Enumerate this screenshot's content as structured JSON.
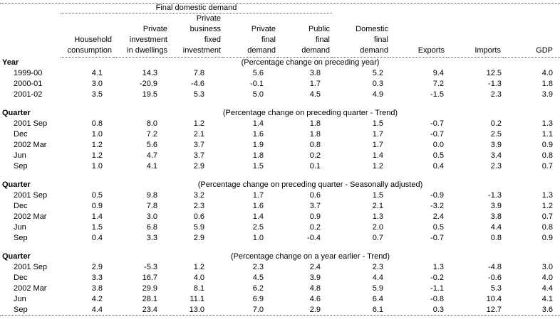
{
  "table": {
    "spanner": "Final domestic demand",
    "columns": [
      {
        "lines": [
          "Household",
          "consumption"
        ]
      },
      {
        "lines": [
          "Private",
          "investment",
          "in dwellings"
        ]
      },
      {
        "lines": [
          "Private",
          "business",
          "fixed",
          "investment"
        ]
      },
      {
        "lines": [
          "Private",
          "final",
          "demand"
        ]
      },
      {
        "lines": [
          "Public",
          "final",
          "demand"
        ]
      },
      {
        "lines": [
          "Domestic",
          "final",
          "demand"
        ]
      },
      {
        "lines": [
          "Exports"
        ]
      },
      {
        "lines": [
          "Imports"
        ]
      },
      {
        "lines": [
          "GDP"
        ]
      }
    ],
    "sections": [
      {
        "label": "Year",
        "caption": "(Percentage change on preceding year)",
        "rows": [
          {
            "period": "1999-00",
            "values": [
              "4.1",
              "14.3",
              "7.8",
              "5.6",
              "3.8",
              "5.2",
              "9.4",
              "12.5",
              "4.0"
            ]
          },
          {
            "period": "2000-01",
            "values": [
              "3.0",
              "-20.9",
              "-4.6",
              "-0.1",
              "1.7",
              "0.3",
              "7.2",
              "-1.3",
              "1.8"
            ]
          },
          {
            "period": "2001-02",
            "values": [
              "3.5",
              "19.5",
              "5.3",
              "5.0",
              "4.5",
              "4.9",
              "-1.5",
              "2.3",
              "3.9"
            ]
          }
        ]
      },
      {
        "label": "Quarter",
        "caption": "(Percentage change on preceding quarter - Trend)",
        "rows": [
          {
            "period": "2001 Sep",
            "values": [
              "0.8",
              "8.0",
              "1.2",
              "1.4",
              "1.8",
              "1.5",
              "-0.7",
              "0.2",
              "1.3"
            ]
          },
          {
            "period": "Dec",
            "values": [
              "1.0",
              "7.2",
              "2.1",
              "1.6",
              "1.8",
              "1.7",
              "-0.7",
              "2.5",
              "1.1"
            ]
          },
          {
            "period": "2002 Mar",
            "values": [
              "1.2",
              "5.6",
              "3.7",
              "1.9",
              "0.8",
              "1.7",
              "0.0",
              "3.9",
              "0.9"
            ]
          },
          {
            "period": "Jun",
            "values": [
              "1.2",
              "4.7",
              "3.7",
              "1.8",
              "0.2",
              "1.4",
              "0.5",
              "3.4",
              "0.8"
            ]
          },
          {
            "period": "Sep",
            "values": [
              "1.0",
              "4.1",
              "2.9",
              "1.5",
              "0.1",
              "1.2",
              "0.4",
              "2.3",
              "0.7"
            ]
          }
        ]
      },
      {
        "label": "Quarter",
        "caption": "(Percentage change on preceding quarter - Seasonally adjusted)",
        "rows": [
          {
            "period": "2001 Sep",
            "values": [
              "0.5",
              "9.8",
              "3.2",
              "1.7",
              "0.6",
              "1.5",
              "-0.9",
              "-1.3",
              "1.3"
            ]
          },
          {
            "period": "Dec",
            "values": [
              "0.9",
              "7.8",
              "2.3",
              "1.6",
              "3.7",
              "2.1",
              "-3.2",
              "3.9",
              "1.2"
            ]
          },
          {
            "period": "2002 Mar",
            "values": [
              "1.4",
              "3.0",
              "0.6",
              "1.4",
              "0.9",
              "1.3",
              "2.4",
              "3.8",
              "0.7"
            ]
          },
          {
            "period": "Jun",
            "values": [
              "1.5",
              "6.8",
              "5.9",
              "2.5",
              "0.2",
              "2.0",
              "0.5",
              "4.4",
              "0.8"
            ]
          },
          {
            "period": "Sep",
            "values": [
              "0.4",
              "3.3",
              "2.9",
              "1.0",
              "-0.4",
              "0.7",
              "-0.7",
              "0.8",
              "0.9"
            ]
          }
        ]
      },
      {
        "label": "Quarter",
        "caption": "(Percentage change on a year earlier - Trend)",
        "rows": [
          {
            "period": "2001 Sep",
            "values": [
              "2.9",
              "-5.3",
              "1.2",
              "2.3",
              "2.4",
              "2.3",
              "1.3",
              "-4.8",
              "3.0"
            ]
          },
          {
            "period": "Dec",
            "values": [
              "3.3",
              "16.7",
              "4.0",
              "4.5",
              "3.9",
              "4.4",
              "-0.2",
              "-0.6",
              "4.0"
            ]
          },
          {
            "period": "2002 Mar",
            "values": [
              "3.8",
              "29.9",
              "8.1",
              "6.2",
              "4.8",
              "5.9",
              "-1.1",
              "5.3",
              "4.4"
            ]
          },
          {
            "period": "Jun",
            "values": [
              "4.2",
              "28.1",
              "11.1",
              "6.9",
              "4.6",
              "6.4",
              "-0.8",
              "10.4",
              "4.1"
            ]
          },
          {
            "period": "Sep",
            "values": [
              "4.4",
              "23.4",
              "13.0",
              "7.0",
              "2.9",
              "6.1",
              "0.3",
              "12.7",
              "3.6"
            ]
          }
        ]
      }
    ]
  }
}
